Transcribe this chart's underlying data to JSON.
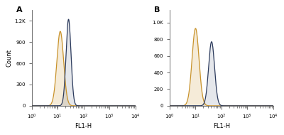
{
  "panel_A": {
    "label": "A",
    "orange_peak_log10": 1.1,
    "orange_peak_height": 1050,
    "orange_sigma": 0.13,
    "blue_peak_log10": 1.42,
    "blue_peak_height": 1220,
    "blue_sigma": 0.095,
    "ymax": 1350,
    "ytick_vals": [
      0,
      300,
      600,
      900,
      1200
    ],
    "ytick_labels": [
      "0",
      "300",
      "600",
      "900",
      "1.2K"
    ]
  },
  "panel_B": {
    "label": "B",
    "orange_peak_log10": 1.0,
    "orange_peak_height": 930,
    "orange_sigma": 0.135,
    "blue_peak_log10": 1.62,
    "blue_peak_height": 770,
    "blue_sigma": 0.115,
    "ymax": 1150,
    "ytick_vals": [
      0,
      200,
      400,
      600,
      800,
      1000
    ],
    "ytick_labels": [
      "0",
      "200",
      "400",
      "600",
      "800",
      "1.0K"
    ]
  },
  "orange_color": "#C8922A",
  "blue_color": "#2B3A5C",
  "orange_fill_alpha": 0.18,
  "blue_fill_alpha": 0.12,
  "background_color": "#ffffff",
  "xlabel": "FL1-H",
  "ylabel": "Count",
  "xmin": 0.0,
  "xmax": 4.0,
  "xtick_vals": [
    0,
    1,
    2,
    3,
    4
  ],
  "xtick_labels": [
    "$10^{0}$",
    "$10^{1}$",
    "$10^{2}$",
    "$10^{3}$",
    "$10^{4}$"
  ],
  "figsize": [
    4.0,
    1.9
  ],
  "dpi": 100
}
